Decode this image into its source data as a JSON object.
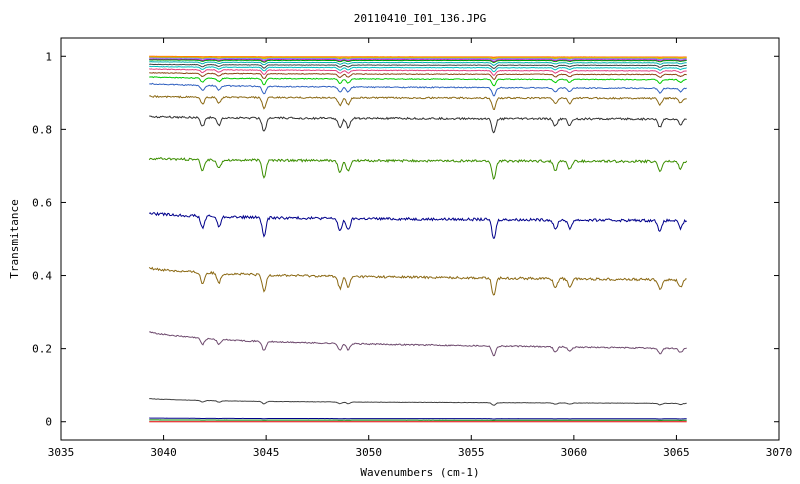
{
  "chart_data": {
    "type": "line",
    "title": "20110410_I01_136.JPG",
    "xlabel": "Wavenumbers (cm-1)",
    "ylabel": "Transmitance",
    "xlim": [
      3035,
      3070
    ],
    "ylim": [
      -0.05,
      1.05
    ],
    "xticks": [
      3035,
      3040,
      3045,
      3050,
      3055,
      3060,
      3065,
      3070
    ],
    "yticks": [
      0,
      0.2,
      0.4,
      0.6,
      0.8,
      1
    ],
    "ytick_labels": [
      "0",
      "0.2",
      "0.4",
      "0.6",
      "0.8",
      "1"
    ],
    "grid": false,
    "legend": "none",
    "x_range_of_data": [
      3039.3,
      3065.5
    ],
    "absorption_lines": [
      {
        "x": 3041.9,
        "rel_depth": 0.55
      },
      {
        "x": 3042.7,
        "rel_depth": 0.45
      },
      {
        "x": 3044.9,
        "rel_depth": 0.85
      },
      {
        "x": 3048.6,
        "rel_depth": 0.6
      },
      {
        "x": 3049.0,
        "rel_depth": 0.55
      },
      {
        "x": 3056.1,
        "rel_depth": 0.9
      },
      {
        "x": 3059.1,
        "rel_depth": 0.45
      },
      {
        "x": 3059.8,
        "rel_depth": 0.4
      },
      {
        "x": 3064.2,
        "rel_depth": 0.5
      },
      {
        "x": 3065.2,
        "rel_depth": 0.35
      }
    ],
    "series": [
      {
        "color": "#ff4400",
        "start": 1.0,
        "end": 0.998,
        "depth": 0.001
      },
      {
        "color": "#ffa500",
        "start": 0.999,
        "end": 0.997,
        "depth": 0.002
      },
      {
        "color": "#c0c000",
        "start": 0.997,
        "end": 0.995,
        "depth": 0.003
      },
      {
        "color": "#7f7fff",
        "start": 0.995,
        "end": 0.993,
        "depth": 0.004
      },
      {
        "color": "#bf00bf",
        "start": 0.992,
        "end": 0.99,
        "depth": 0.005
      },
      {
        "color": "#00a000",
        "start": 0.99,
        "end": 0.988,
        "depth": 0.006
      },
      {
        "color": "#00b0b0",
        "start": 0.985,
        "end": 0.982,
        "depth": 0.008
      },
      {
        "color": "#404040",
        "start": 0.978,
        "end": 0.975,
        "depth": 0.01
      },
      {
        "color": "#00c0c0",
        "start": 0.972,
        "end": 0.968,
        "depth": 0.012
      },
      {
        "color": "#e04080",
        "start": 0.965,
        "end": 0.96,
        "depth": 0.014
      },
      {
        "color": "#8b4513",
        "start": 0.955,
        "end": 0.95,
        "depth": 0.016
      },
      {
        "color": "#00cc00",
        "start": 0.943,
        "end": 0.936,
        "depth": 0.02
      },
      {
        "color": "#3060c0",
        "start": 0.925,
        "end": 0.912,
        "depth": 0.025
      },
      {
        "color": "#8b6914",
        "start": 0.89,
        "end": 0.885,
        "depth": 0.035
      },
      {
        "color": "#303030",
        "start": 0.835,
        "end": 0.828,
        "depth": 0.045
      },
      {
        "color": "#3b8e00",
        "start": 0.72,
        "end": 0.712,
        "depth": 0.055
      },
      {
        "color": "#00008b",
        "start": 0.57,
        "end": 0.55,
        "depth": 0.06
      },
      {
        "color": "#8b6914",
        "start": 0.42,
        "end": 0.388,
        "depth": 0.055
      },
      {
        "color": "#6e4a6e",
        "start": 0.245,
        "end": 0.2,
        "depth": 0.03
      },
      {
        "color": "#404040",
        "start": 0.063,
        "end": 0.05,
        "depth": 0.008
      },
      {
        "color": "#00008b",
        "start": 0.01,
        "end": 0.008,
        "depth": 0.001
      },
      {
        "color": "#008000",
        "start": 0.005,
        "end": 0.004,
        "depth": 0.0005
      },
      {
        "color": "#e00000",
        "start": 0.0,
        "end": 0.0,
        "depth": 0.0
      }
    ]
  }
}
